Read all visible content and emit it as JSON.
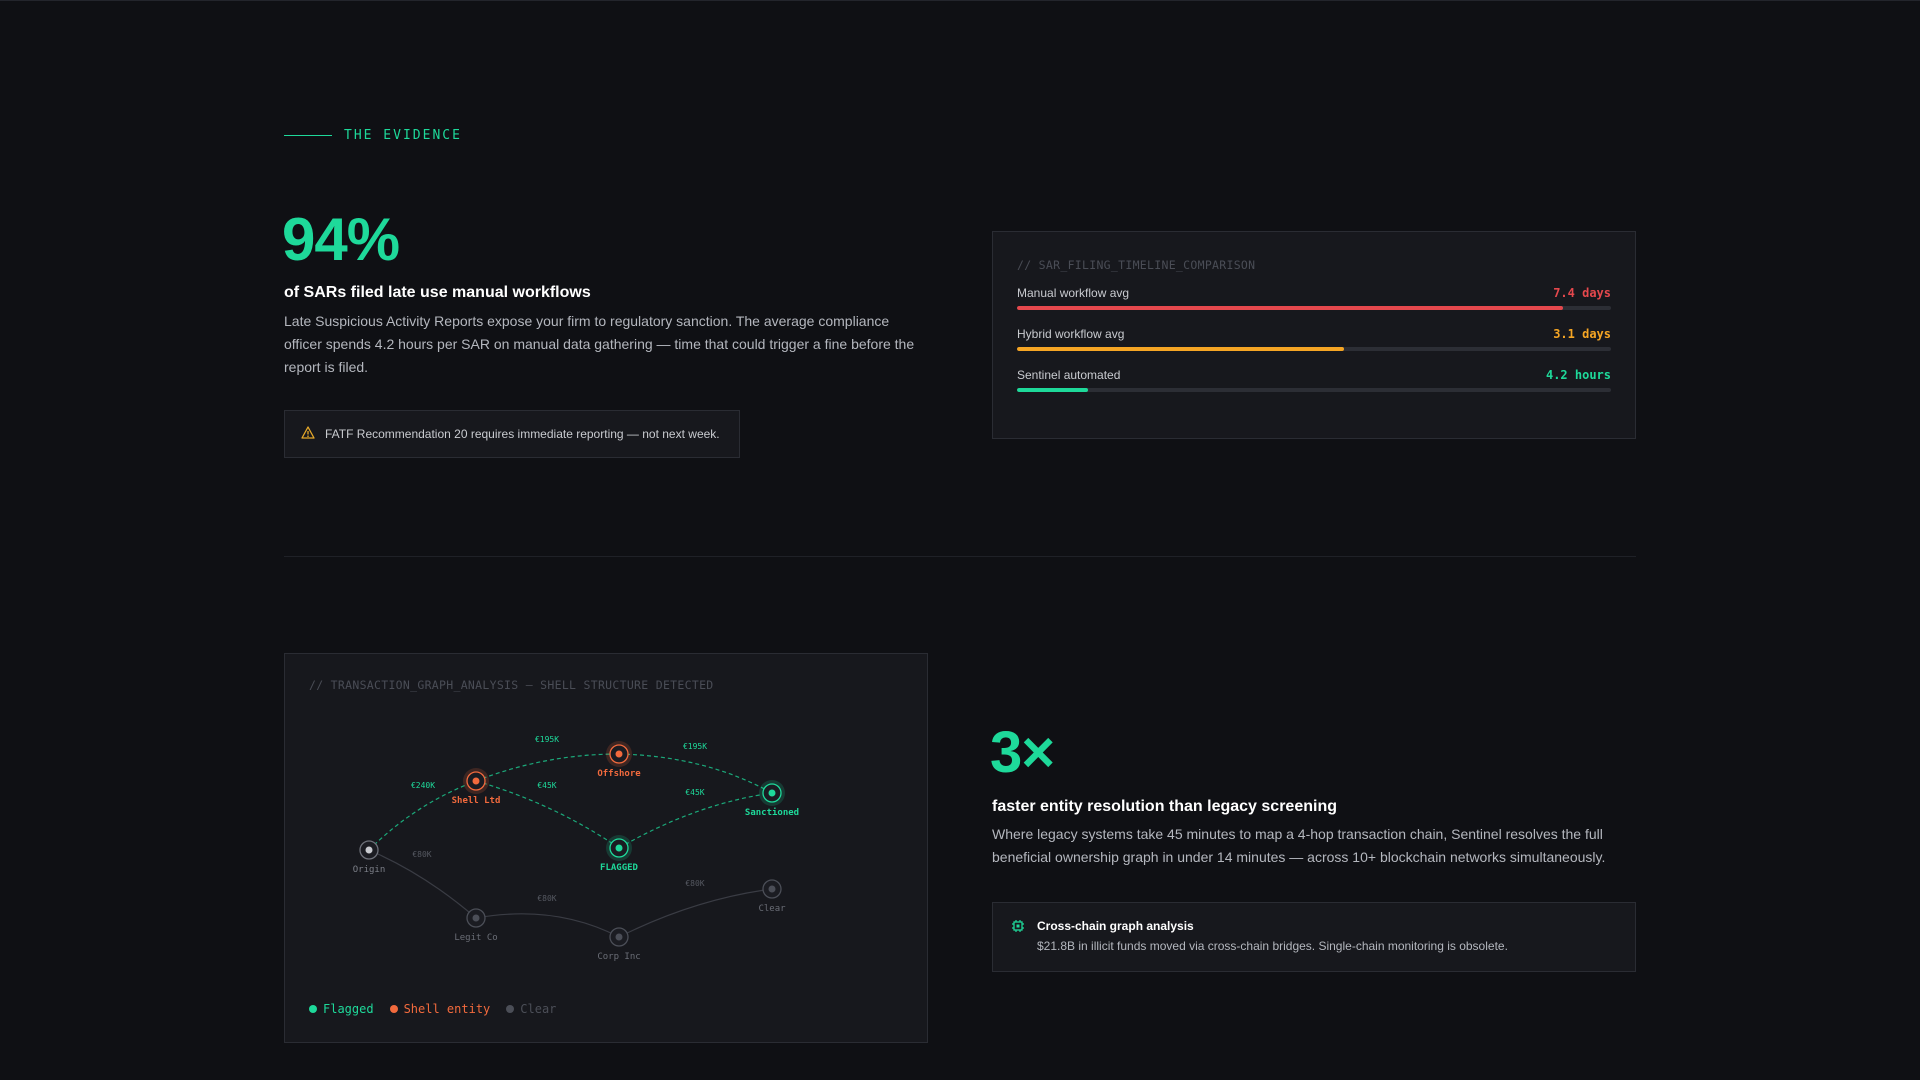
{
  "eyebrow": "THE EVIDENCE",
  "stat1": {
    "value": "94%",
    "headline": "of SARs filed late use manual workflows",
    "body": "Late Suspicious Activity Reports expose your firm to regulatory sanction. The average compliance officer spends 4.2 hours per SAR on manual data gathering — time that could trigger a fine before the report is filed.",
    "alert": "FATF Recommendation 20 requires immediate reporting — not next week.",
    "alert_icon": "warning-triangle-icon"
  },
  "sar_panel": {
    "caption": "// SAR_FILING_TIMELINE_COMPARISON",
    "rows": [
      {
        "label": "Manual workflow avg",
        "value": "7.4 days",
        "fill": 0.92,
        "color": "#e5484d"
      },
      {
        "label": "Hybrid workflow avg",
        "value": "3.1 days",
        "fill": 0.55,
        "color": "#f5a524"
      },
      {
        "label": "Sentinel automated",
        "value": "4.2 hours",
        "fill": 0.12,
        "color": "#1ed99a"
      }
    ]
  },
  "graph_panel": {
    "caption": "// TRANSACTION_GRAPH_ANALYSIS — SHELL STRUCTURE DETECTED",
    "nodes": [
      {
        "id": "origin",
        "label": "Origin",
        "kind": "neutral"
      },
      {
        "id": "shell",
        "label": "Shell Ltd",
        "kind": "shell"
      },
      {
        "id": "offshore",
        "label": "Offshore",
        "kind": "shell"
      },
      {
        "id": "sanctioned",
        "label": "Sanctioned",
        "kind": "flagged"
      },
      {
        "id": "flagged",
        "label": "FLAGGED",
        "kind": "flagged"
      },
      {
        "id": "legit",
        "label": "Legit Co",
        "kind": "clear"
      },
      {
        "id": "corp",
        "label": "Corp Inc",
        "kind": "clear"
      },
      {
        "id": "clear",
        "label": "Clear",
        "kind": "clear"
      }
    ],
    "edges": [
      {
        "from": "origin",
        "to": "shell",
        "amount": "€240K",
        "kind": "flagged"
      },
      {
        "from": "shell",
        "to": "offshore",
        "amount": "€195K",
        "kind": "flagged"
      },
      {
        "from": "offshore",
        "to": "sanctioned",
        "amount": "€195K",
        "kind": "flagged"
      },
      {
        "from": "shell",
        "to": "flagged",
        "amount": "€45K",
        "kind": "flagged"
      },
      {
        "from": "flagged",
        "to": "sanctioned",
        "amount": "€45K",
        "kind": "flagged"
      },
      {
        "from": "origin",
        "to": "legit",
        "amount": "€80K",
        "kind": "clear"
      },
      {
        "from": "legit",
        "to": "corp",
        "amount": "€80K",
        "kind": "clear"
      },
      {
        "from": "corp",
        "to": "clear",
        "amount": "€80K",
        "kind": "clear"
      }
    ],
    "legend": [
      {
        "label": "Flagged",
        "color": "#1ed99a"
      },
      {
        "label": "Shell entity",
        "color": "#f26a3d"
      },
      {
        "label": "Clear",
        "color": "#4b4e57"
      }
    ]
  },
  "stat2": {
    "value": "3×",
    "headline": "faster entity resolution than legacy screening",
    "body": "Where legacy systems take 45 minutes to map a 4-hop transaction chain, Sentinel resolves the full beneficial ownership graph in under 14 minutes — across 10+ blockchain networks simultaneously.",
    "feature_icon": "chip-icon",
    "feature_title": "Cross-chain graph analysis",
    "feature_desc": "$21.8B in illicit funds moved via cross-chain bridges. Single-chain monitoring is obsolete."
  },
  "colors": {
    "accent": "#1ed99a",
    "shell": "#f26a3d",
    "clear": "#4b4e57",
    "neutral": "#8a8d95"
  }
}
